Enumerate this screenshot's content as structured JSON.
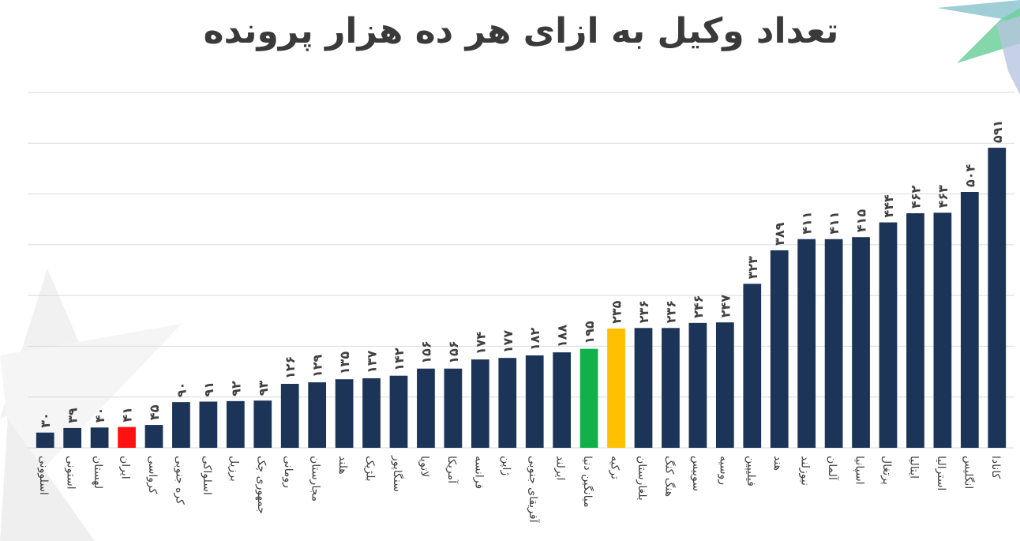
{
  "chart_data": {
    "type": "bar",
    "title": "تعداد وکیل به ازای هر ده هزار پرونده",
    "xlabel": "",
    "ylabel": "",
    "ylim": [
      0,
      700
    ],
    "grid": true,
    "categories": [
      "اسلوونی",
      "استونی",
      "لهستان",
      "ایران",
      "کرواسی",
      "کره جنوبی",
      "اسلواکی",
      "برزیل",
      "جمهوری چک",
      "رومانی",
      "مجارستان",
      "هلند",
      "بلژیک",
      "سنگاپور",
      "لاتویا",
      "آمریکا",
      "فرانسه",
      "ژاپن",
      "آفریقای جنوبی",
      "ایرلند",
      "میانگین دنیا",
      "ترکیه",
      "بلغارستان",
      "هنگ کنگ",
      "سوییس",
      "روسیه",
      "فیلیپین",
      "هند",
      "نیوزلند",
      "آلمان",
      "اسپانیا",
      "پرتغال",
      "ایتالیا",
      "استرالیا",
      "انگلیس",
      "کانادا"
    ],
    "values": [
      30,
      39,
      40,
      41,
      45,
      90,
      91,
      92,
      93,
      126,
      129,
      135,
      137,
      142,
      156,
      156,
      174,
      177,
      182,
      188,
      195,
      235,
      236,
      236,
      246,
      247,
      323,
      389,
      411,
      411,
      415,
      444,
      462,
      463,
      504,
      591
    ],
    "value_labels": [
      "۳۰",
      "۳۹",
      "۴۰",
      "۴۱",
      "۴۵",
      "۹۰",
      "۹۱",
      "۹۲",
      "۹۳",
      "۱۲۶",
      "۱۲۹",
      "۱۳۵",
      "۱۳۷",
      "۱۴۲",
      "۱۵۶",
      "۱۵۶",
      "۱۷۴",
      "۱۷۷",
      "۱۸۲",
      "۱۸۸",
      "۱۹۵",
      "۲۳۵",
      "۲۳۶",
      "۲۳۶",
      "۲۴۶",
      "۲۴۷",
      "۳۲۳",
      "۳۸۹",
      "۴۱۱",
      "۴۱۱",
      "۴۱۵",
      "۴۴۴",
      "۴۶۲",
      "۴۶۳",
      "۵۰۴",
      "۵۹۱"
    ],
    "colors": {
      "default": "#1c3458",
      "highlight_iran": "#ff1111",
      "highlight_world_average": "#12b04a",
      "highlight_turkey": "#ffc000",
      "grid": "#d9d9d9",
      "text": "#404040"
    },
    "highlights": {
      "ایران": "highlight_iran",
      "میانگین دنیا": "highlight_world_average",
      "ترکیه": "highlight_turkey"
    }
  }
}
